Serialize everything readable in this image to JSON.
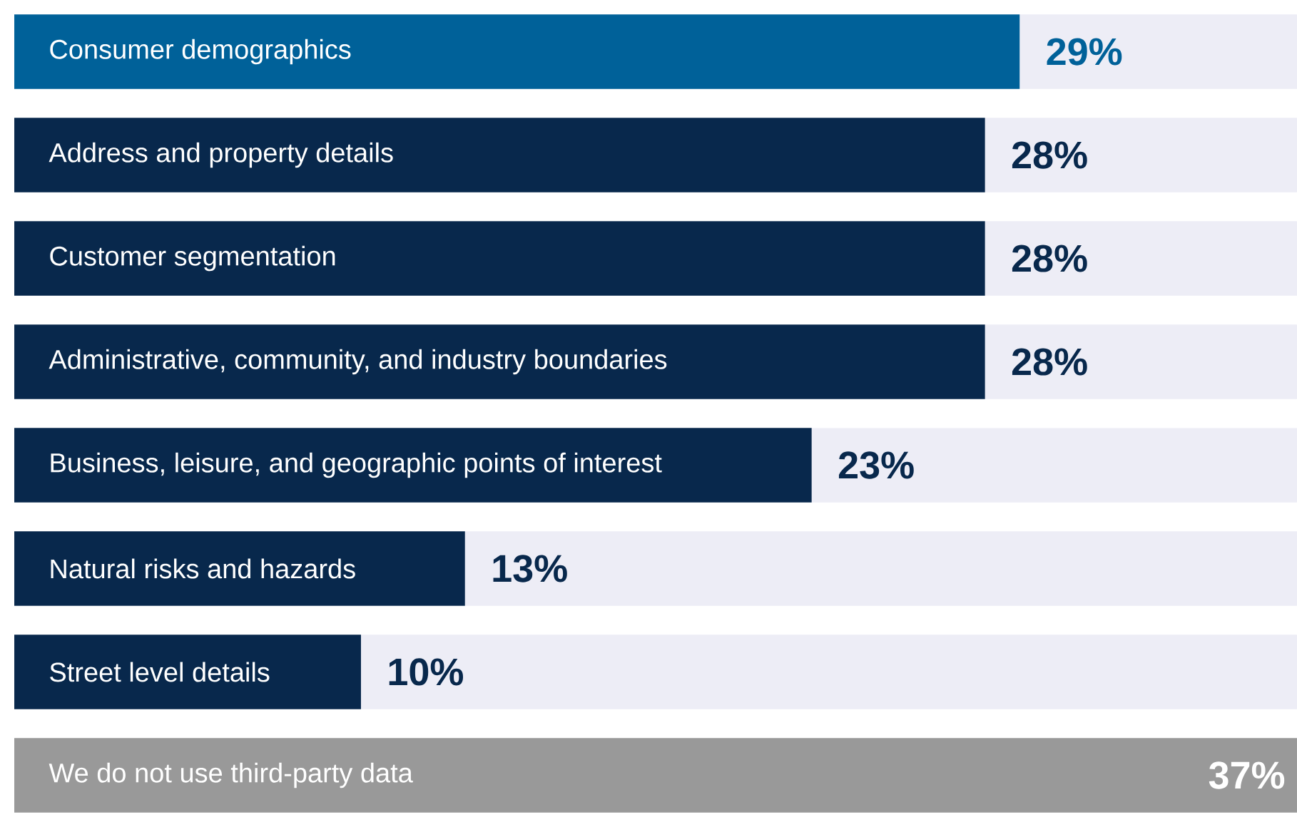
{
  "chart_data": {
    "type": "bar",
    "orientation": "horizontal",
    "categories": [
      "Consumer demographics",
      "Address and property details",
      "Customer segmentation",
      "Administrative, community, and industry boundaries",
      "Business, leisure, and geographic points of interest",
      "Natural risks and hazards",
      "Street level details",
      "We do not use third-party data"
    ],
    "values": [
      29,
      28,
      28,
      28,
      23,
      13,
      10,
      37
    ],
    "colors": [
      "#006199",
      "#08284c",
      "#08284c",
      "#08284c",
      "#08284c",
      "#08284c",
      "#08284c",
      "#999999"
    ],
    "value_labels": [
      "29%",
      "28%",
      "28%",
      "28%",
      "23%",
      "13%",
      "10%",
      "37%"
    ],
    "xlim": [
      0,
      37
    ],
    "tick_labels": false
  }
}
